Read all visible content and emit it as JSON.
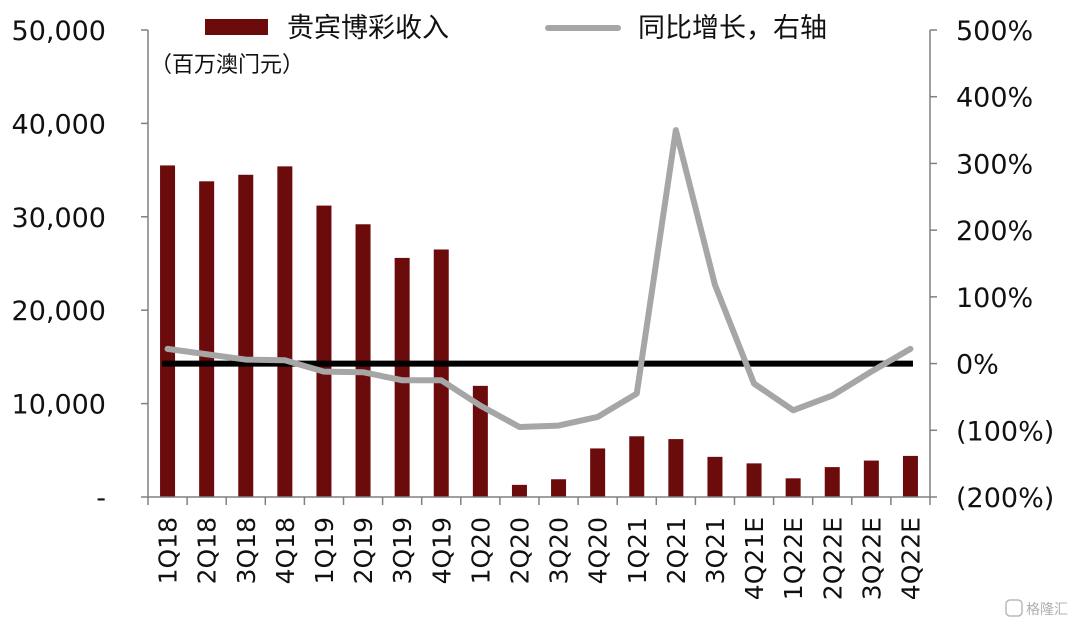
{
  "chart_data": {
    "type": "bar+line",
    "categories": [
      "1Q18",
      "2Q18",
      "3Q18",
      "4Q18",
      "1Q19",
      "2Q19",
      "3Q19",
      "4Q19",
      "1Q20",
      "2Q20",
      "3Q20",
      "4Q20",
      "1Q21",
      "2Q21",
      "3Q21",
      "4Q21E",
      "1Q22E",
      "2Q22E",
      "3Q22E",
      "4Q22E"
    ],
    "series": [
      {
        "name": "贵宾博彩收入",
        "type": "bar",
        "axis": "left",
        "color": "#6b0b0b",
        "values": [
          35500,
          33800,
          34500,
          35400,
          31200,
          29200,
          25600,
          26500,
          11900,
          1300,
          1900,
          5200,
          6500,
          6200,
          4300,
          3600,
          2000,
          3200,
          3900,
          4400
        ]
      },
      {
        "name": "同比增长，右轴",
        "type": "line",
        "axis": "right",
        "color": "#a6a6a6",
        "values": [
          22,
          14,
          6,
          5,
          -12,
          -13,
          -25,
          -25,
          -63,
          -95,
          -93,
          -80,
          -45,
          350,
          118,
          -30,
          -70,
          -48,
          -12,
          22
        ]
      }
    ],
    "zero_line": {
      "axis": "right",
      "value": 0,
      "color": "#000000"
    },
    "left_axis": {
      "ylim": [
        0,
        50000
      ],
      "ticks": [
        0,
        10000,
        20000,
        30000,
        40000,
        50000
      ],
      "tick_labels": [
        "-",
        "10,000",
        "20,000",
        "30,000",
        "40,000",
        "50,000"
      ],
      "unit": "（百万澳门元）"
    },
    "right_axis": {
      "ylim": [
        -200,
        500
      ],
      "ticks": [
        -200,
        -100,
        0,
        100,
        200,
        300,
        400,
        500
      ],
      "tick_labels": [
        "(200%)",
        "(100%)",
        "0%",
        "100%",
        "200%",
        "300%",
        "400%",
        "500%"
      ]
    },
    "legend": {
      "placement": "top"
    },
    "grid": false
  },
  "watermark": "格隆汇"
}
